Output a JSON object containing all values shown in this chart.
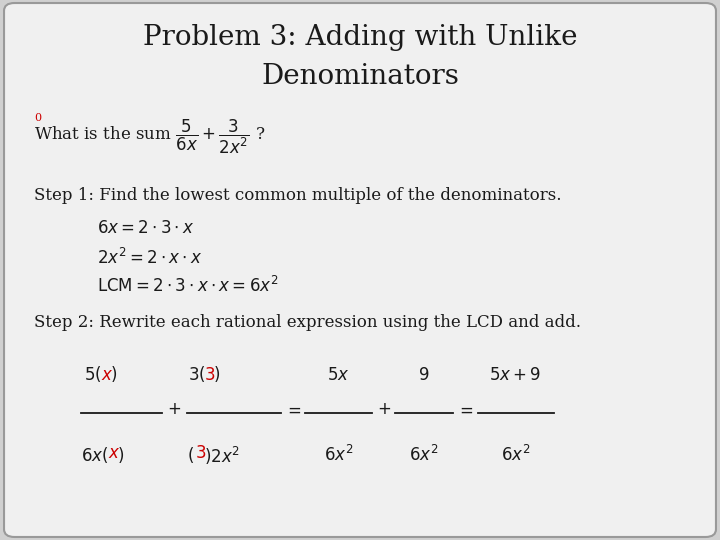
{
  "title_line1": "Problem 3: Adding with Unlike",
  "title_line2": "Denominators",
  "background_color": "#d0d0d0",
  "inner_bg_color": "#f0f0f0",
  "text_color": "#1a1a1a",
  "red_color": "#cc0000",
  "title_fontsize": 20,
  "body_fontsize": 12,
  "eq_fontsize": 12
}
